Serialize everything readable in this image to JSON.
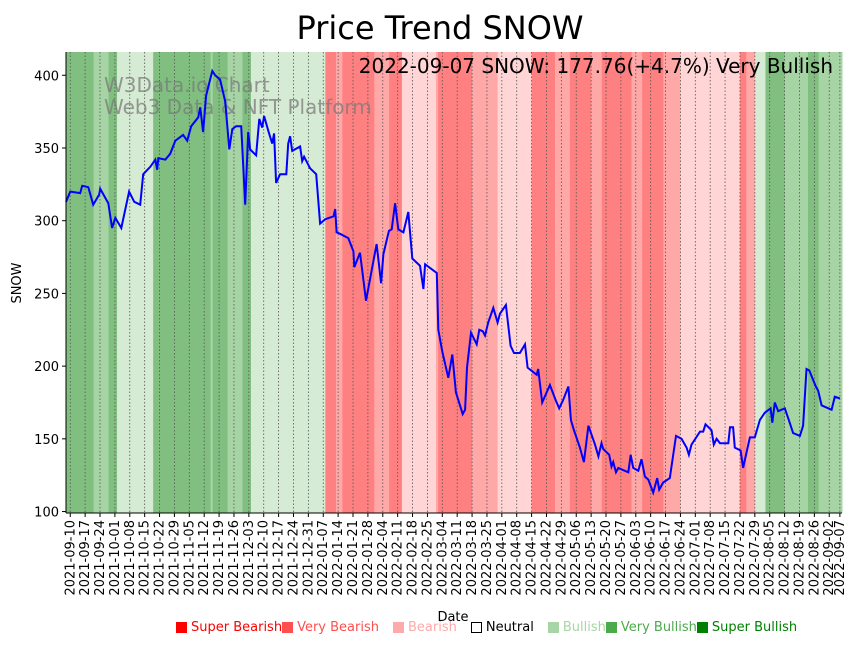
{
  "chart_data": {
    "type": "line",
    "title": "Price Trend SNOW",
    "annotation": "2022-09-07 SNOW: 177.76(+4.7%) Very Bullish",
    "watermark": [
      "W3Data.io Chart",
      "Web3 Data & NFT Platform"
    ],
    "xlabel": "Date",
    "ylabel": "SNOW",
    "x_unit": "days since 2021-09-10",
    "xlim": [
      -2,
      363
    ],
    "ylim": [
      99,
      416
    ],
    "yticks": [
      100,
      150,
      200,
      250,
      300,
      350,
      400
    ],
    "xtick_labels": [
      "2021-09-10",
      "2021-09-17",
      "2021-09-24",
      "2021-10-01",
      "2021-10-08",
      "2021-10-15",
      "2021-10-22",
      "2021-10-29",
      "2021-11-05",
      "2021-11-12",
      "2021-11-19",
      "2021-11-26",
      "2021-12-03",
      "2021-12-10",
      "2021-12-17",
      "2021-12-24",
      "2021-12-31",
      "2022-01-07",
      "2022-01-14",
      "2022-01-21",
      "2022-01-28",
      "2022-02-04",
      "2022-02-11",
      "2022-02-18",
      "2022-02-25",
      "2022-03-04",
      "2022-03-11",
      "2022-03-18",
      "2022-03-25",
      "2022-04-01",
      "2022-04-08",
      "2022-04-15",
      "2022-04-22",
      "2022-04-29",
      "2022-05-06",
      "2022-05-13",
      "2022-05-20",
      "2022-05-27",
      "2022-06-03",
      "2022-06-10",
      "2022-06-17",
      "2022-06-24",
      "2022-07-01",
      "2022-07-08",
      "2022-07-15",
      "2022-07-22",
      "2022-07-29",
      "2022-08-05",
      "2022-08-12",
      "2022-08-19",
      "2022-08-26",
      "2022-09-02",
      "2022-09-07"
    ],
    "xtick_days": [
      0,
      7,
      14,
      21,
      28,
      35,
      42,
      49,
      56,
      63,
      70,
      77,
      84,
      91,
      98,
      105,
      112,
      119,
      126,
      133,
      140,
      147,
      154,
      161,
      168,
      175,
      182,
      189,
      196,
      203,
      210,
      217,
      224,
      231,
      238,
      245,
      252,
      259,
      266,
      273,
      280,
      287,
      294,
      301,
      308,
      315,
      322,
      329,
      336,
      343,
      350,
      357,
      362
    ],
    "grid": "vertical dotted at x ticks",
    "series": [
      {
        "name": "SNOW",
        "color": "#0000ff",
        "points": [
          [
            -2,
            313
          ],
          [
            0,
            320
          ],
          [
            4.7,
            319
          ],
          [
            5.6,
            324
          ],
          [
            8.5,
            323
          ],
          [
            10.8,
            311
          ],
          [
            13.6,
            318
          ],
          [
            14.1,
            322
          ],
          [
            17.9,
            312
          ],
          [
            19.7,
            295
          ],
          [
            21.2,
            302
          ],
          [
            24,
            295
          ],
          [
            27.7,
            320
          ],
          [
            30.1,
            313
          ],
          [
            32.9,
            311
          ],
          [
            34.3,
            332
          ],
          [
            37.6,
            337
          ],
          [
            40,
            342
          ],
          [
            40.9,
            335
          ],
          [
            41.4,
            343
          ],
          [
            44.7,
            342
          ],
          [
            47,
            346
          ],
          [
            49.4,
            355
          ],
          [
            53.1,
            359
          ],
          [
            55,
            355
          ],
          [
            56.9,
            365
          ],
          [
            60.2,
            371
          ],
          [
            61.1,
            378
          ],
          [
            62.5,
            361
          ],
          [
            63.9,
            386
          ],
          [
            66.8,
            403
          ],
          [
            68.2,
            400
          ],
          [
            70.5,
            397
          ],
          [
            72.9,
            382
          ],
          [
            74.8,
            349
          ],
          [
            76.2,
            363
          ],
          [
            78,
            365
          ],
          [
            80.4,
            365
          ],
          [
            82.3,
            311
          ],
          [
            83.7,
            361
          ],
          [
            84.6,
            349
          ],
          [
            87.4,
            345
          ],
          [
            88.9,
            370
          ],
          [
            90.3,
            364
          ],
          [
            91.2,
            372
          ],
          [
            93.1,
            362
          ],
          [
            95,
            353
          ],
          [
            95.9,
            360
          ],
          [
            96.8,
            326
          ],
          [
            98.7,
            332
          ],
          [
            101.6,
            332
          ],
          [
            102.5,
            353
          ],
          [
            103.4,
            358
          ],
          [
            104.4,
            348
          ],
          [
            108.1,
            351
          ],
          [
            109.1,
            341
          ],
          [
            110,
            344
          ],
          [
            112.8,
            336
          ],
          [
            115.7,
            332
          ],
          [
            117.5,
            298
          ],
          [
            119.9,
            301
          ],
          [
            123.8,
            303
          ],
          [
            124.6,
            308
          ],
          [
            125.3,
            292
          ],
          [
            126.9,
            291
          ],
          [
            130.8,
            288
          ],
          [
            133.2,
            279
          ],
          [
            133.6,
            268
          ],
          [
            136.3,
            278
          ],
          [
            139.1,
            245
          ],
          [
            144.1,
            284
          ],
          [
            146.2,
            257
          ],
          [
            147.3,
            277
          ],
          [
            149.9,
            293
          ],
          [
            151.2,
            294
          ],
          [
            152.8,
            312
          ],
          [
            154.3,
            294
          ],
          [
            156.7,
            292
          ],
          [
            159,
            306
          ],
          [
            160.9,
            274
          ],
          [
            164.5,
            269
          ],
          [
            166.1,
            253
          ],
          [
            166.9,
            270
          ],
          [
            172.4,
            264
          ],
          [
            173.1,
            225
          ],
          [
            175,
            210
          ],
          [
            177.8,
            192
          ],
          [
            179.7,
            208
          ],
          [
            181.4,
            182
          ],
          [
            184.6,
            167
          ],
          [
            185.7,
            170
          ],
          [
            186.6,
            199
          ],
          [
            188.5,
            223
          ],
          [
            191.2,
            215
          ],
          [
            192.4,
            225
          ],
          [
            194,
            224
          ],
          [
            195.1,
            221
          ],
          [
            196.6,
            230
          ],
          [
            199,
            240
          ],
          [
            201,
            230
          ],
          [
            202.1,
            236
          ],
          [
            204.9,
            242
          ],
          [
            207.1,
            214
          ],
          [
            208.7,
            209
          ],
          [
            211.5,
            209
          ],
          [
            213.9,
            215
          ],
          [
            215.1,
            199
          ],
          [
            219.4,
            194
          ],
          [
            220.1,
            198
          ],
          [
            222,
            175
          ],
          [
            225.6,
            187
          ],
          [
            228.5,
            176
          ],
          [
            230,
            171
          ],
          [
            231.9,
            177
          ],
          [
            234.3,
            186
          ],
          [
            235.5,
            163
          ],
          [
            236.9,
            156
          ],
          [
            239.7,
            144
          ],
          [
            241.6,
            134
          ],
          [
            243.7,
            159
          ],
          [
            246.8,
            146
          ],
          [
            248.4,
            138
          ],
          [
            249.9,
            147
          ],
          [
            250.7,
            143
          ],
          [
            253.5,
            139
          ],
          [
            254.6,
            131
          ],
          [
            255.4,
            134
          ],
          [
            256.7,
            127
          ],
          [
            257.8,
            130
          ],
          [
            262.5,
            127
          ],
          [
            263.6,
            139
          ],
          [
            264.8,
            130
          ],
          [
            267.2,
            128
          ],
          [
            268.7,
            136
          ],
          [
            270.3,
            124
          ],
          [
            271.9,
            122
          ],
          [
            274.2,
            113
          ],
          [
            276.1,
            123
          ],
          [
            277,
            115
          ],
          [
            278.9,
            120
          ],
          [
            282,
            123
          ],
          [
            284.9,
            152
          ],
          [
            287.5,
            150
          ],
          [
            289.9,
            144
          ],
          [
            291,
            139
          ],
          [
            292.2,
            146
          ],
          [
            296.2,
            155
          ],
          [
            297.7,
            155
          ],
          [
            298.8,
            160
          ],
          [
            301.6,
            156
          ],
          [
            302.7,
            146
          ],
          [
            304,
            150
          ],
          [
            305.6,
            147
          ],
          [
            309.5,
            147
          ],
          [
            310.3,
            158
          ],
          [
            311.8,
            158
          ],
          [
            312.6,
            144
          ],
          [
            315.3,
            142
          ],
          [
            316.5,
            130
          ],
          [
            318.6,
            144
          ],
          [
            319.7,
            151
          ],
          [
            322,
            151
          ],
          [
            324.4,
            163
          ],
          [
            326.7,
            168
          ],
          [
            329.4,
            171
          ],
          [
            330.2,
            161
          ],
          [
            331.4,
            175
          ],
          [
            333,
            169
          ],
          [
            336.1,
            171
          ],
          [
            338.2,
            162
          ],
          [
            340,
            154
          ],
          [
            343.2,
            152
          ],
          [
            344.7,
            159
          ],
          [
            346.3,
            198
          ],
          [
            347.6,
            197
          ],
          [
            350.7,
            186
          ],
          [
            351.8,
            183
          ],
          [
            353.4,
            173
          ],
          [
            358.1,
            170
          ],
          [
            359.6,
            179
          ],
          [
            362,
            177.76
          ]
        ]
      }
    ],
    "sentiment_bands": [
      [
        -2,
        11,
        3
      ],
      [
        11,
        18,
        2
      ],
      [
        18,
        22,
        3
      ],
      [
        22,
        39,
        1
      ],
      [
        39,
        66,
        3
      ],
      [
        66,
        67,
        2
      ],
      [
        67,
        74,
        3
      ],
      [
        74,
        81,
        2
      ],
      [
        81,
        85,
        3
      ],
      [
        85,
        120,
        1
      ],
      [
        120,
        125,
        -3
      ],
      [
        125,
        128,
        -2
      ],
      [
        128,
        143,
        -3
      ],
      [
        143,
        150,
        -2
      ],
      [
        150,
        156,
        -3
      ],
      [
        156,
        172,
        -1
      ],
      [
        172,
        173,
        -2
      ],
      [
        173,
        189,
        -3
      ],
      [
        189,
        201,
        -2
      ],
      [
        201,
        217,
        -1
      ],
      [
        217,
        228,
        -3
      ],
      [
        228,
        235,
        -2
      ],
      [
        235,
        245,
        -3
      ],
      [
        245,
        250,
        -2
      ],
      [
        250,
        264,
        -3
      ],
      [
        264,
        269,
        -2
      ],
      [
        269,
        279,
        -3
      ],
      [
        279,
        287,
        -2
      ],
      [
        287,
        315,
        -1
      ],
      [
        315,
        318,
        -3
      ],
      [
        318,
        322,
        -2
      ],
      [
        322,
        327,
        1
      ],
      [
        327,
        336,
        3
      ],
      [
        336,
        347,
        2
      ],
      [
        347,
        352,
        3
      ],
      [
        352,
        363,
        2
      ]
    ],
    "band_colors": {
      "3": "#80bf80",
      "2": "#a7d4a5",
      "1": "#d5ebd3",
      "-1": "#ffd5d5",
      "-2": "#ffa8a8",
      "-3": "#ff8080"
    },
    "legend": [
      {
        "label": "Super Bearish",
        "color": "#ff0000"
      },
      {
        "label": "Very Bearish",
        "color": "#ff5050"
      },
      {
        "label": "Bearish",
        "color": "#ffaaaa"
      },
      {
        "label": "Neutral",
        "color": "#000000"
      },
      {
        "label": "Bullish",
        "color": "#a8d5a6"
      },
      {
        "label": "Very Bullish",
        "color": "#4caa4c"
      },
      {
        "label": "Super Bullish",
        "color": "#008000"
      }
    ],
    "legend_placement": "bottom-right"
  }
}
